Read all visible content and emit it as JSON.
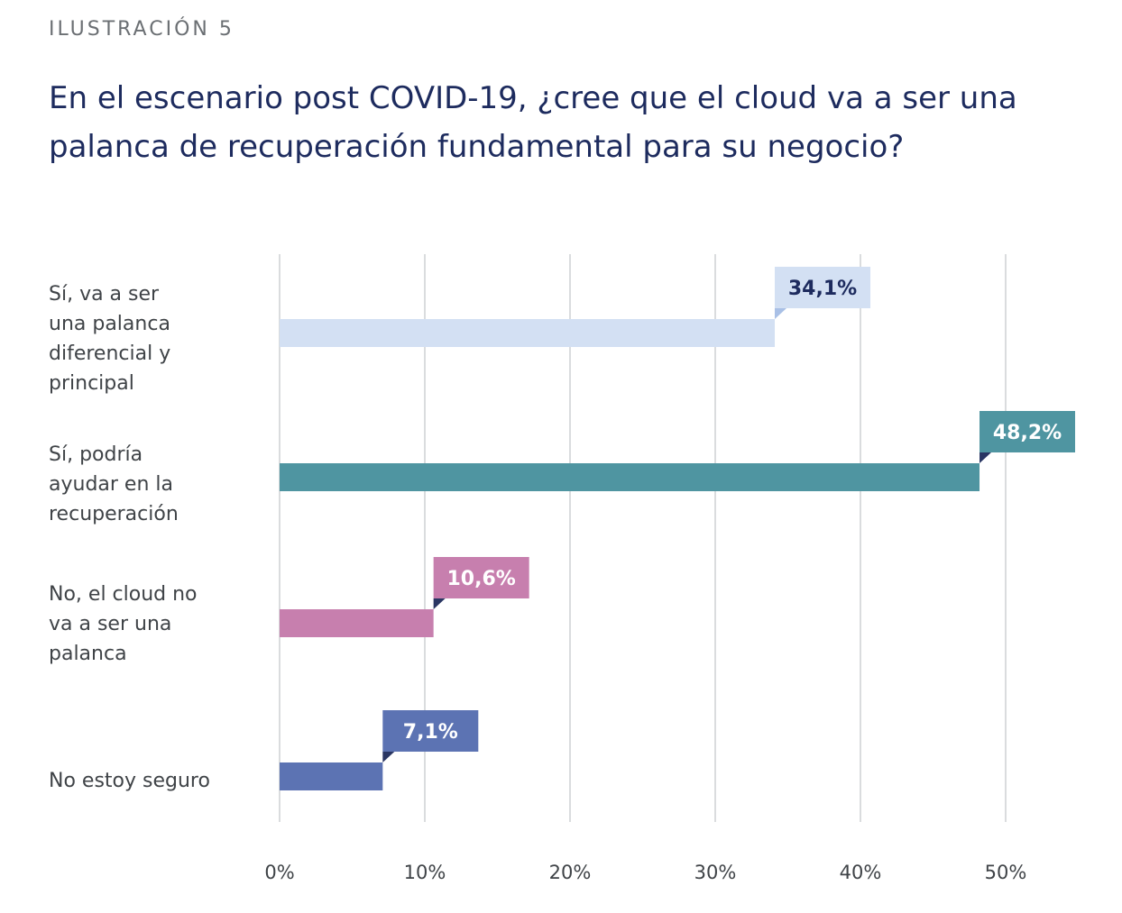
{
  "eyebrow": "ILUSTRACIÓN 5",
  "title": "En el escenario post COVID-19, ¿cree que el cloud va a ser una palanca de recuperación fundamental para su negocio?",
  "chart_data": {
    "type": "bar",
    "orientation": "horizontal",
    "categories": [
      [
        "Sí, va a ser",
        "una palanca",
        "diferencial y",
        "principal"
      ],
      [
        "Sí, podría",
        "ayudar en la",
        "recuperación"
      ],
      [
        "No, el cloud no",
        "va a ser una",
        "palanca"
      ],
      [
        "No estoy seguro"
      ]
    ],
    "values": [
      34.1,
      48.2,
      10.6,
      7.1
    ],
    "value_labels": [
      "34,1%",
      "48,2%",
      "10,6%",
      "7,1%"
    ],
    "bar_colors": [
      "#d3e0f3",
      "#4f95a1",
      "#c77fae",
      "#5c73b3"
    ],
    "label_text_colors": [
      "#1d2b5e",
      "#ffffff",
      "#ffffff",
      "#ffffff"
    ],
    "tab_colors": [
      "#a9c0e6",
      "#2a3663",
      "#2a3663",
      "#2a3663"
    ],
    "xlim": [
      0,
      50
    ],
    "xticks": [
      0,
      10,
      20,
      30,
      40,
      50
    ],
    "xtick_labels": [
      "0%",
      "10%",
      "20%",
      "30%",
      "40%",
      "50%"
    ],
    "grid": true
  }
}
